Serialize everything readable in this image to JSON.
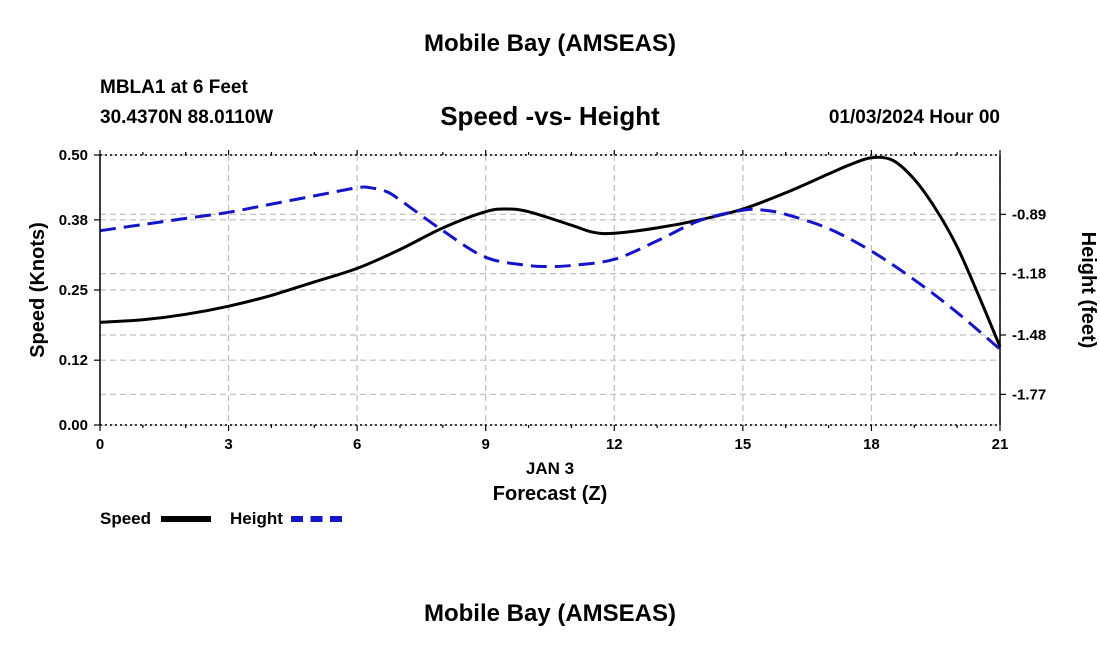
{
  "header": {
    "title_top": "Mobile Bay (AMSEAS)",
    "station": "MBLA1 at 6 Feet",
    "coords": "30.4370N  88.0110W",
    "subtitle": "Speed -vs- Height",
    "datetime": "01/03/2024 Hour 00",
    "title_bottom": "Mobile Bay (AMSEAS)"
  },
  "legend": {
    "speed_label": "Speed",
    "height_label": "Height"
  },
  "colors": {
    "speed": "#000000",
    "height": "#1414c8",
    "grid": "#bdbdbd"
  },
  "chart_data": {
    "type": "line",
    "xlabel": "Forecast (Z)",
    "xdate": "JAN 3",
    "ylabel": "Speed (Knots)",
    "y2label": "Height (feet)",
    "xlim": [
      0,
      21
    ],
    "ylim": [
      0,
      0.5
    ],
    "y2lim": [
      -1.92,
      -0.6
    ],
    "x_ticks": [
      "0",
      "3",
      "6",
      "9",
      "12",
      "15",
      "18",
      "21"
    ],
    "y_ticks": [
      "0.00",
      "0.12",
      "0.25",
      "0.38",
      "0.50"
    ],
    "y2_ticks": [
      "-0.89",
      "-1.18",
      "-1.48",
      "-1.77"
    ],
    "grid": true,
    "legend_position": "bottom-left",
    "series": [
      {
        "name": "Speed",
        "axis": "left",
        "style": "solid",
        "x": [
          0,
          1,
          2,
          3,
          4,
          5,
          6,
          7,
          8,
          9,
          9.5,
          10,
          11,
          11.5,
          12,
          13,
          14,
          15,
          16,
          17,
          17.5,
          18,
          18.5,
          19,
          19.5,
          20,
          20.5,
          21
        ],
        "y": [
          0.19,
          0.195,
          0.205,
          0.22,
          0.24,
          0.265,
          0.29,
          0.325,
          0.365,
          0.395,
          0.4,
          0.395,
          0.37,
          0.357,
          0.355,
          0.365,
          0.38,
          0.4,
          0.43,
          0.465,
          0.482,
          0.495,
          0.49,
          0.455,
          0.4,
          0.33,
          0.24,
          0.145
        ]
      },
      {
        "name": "Height",
        "axis": "right",
        "style": "dashed",
        "x": [
          0,
          1,
          2,
          3,
          4,
          5,
          6,
          6.3,
          6.7,
          7,
          8,
          9,
          10,
          10.5,
          11,
          12,
          13,
          14,
          15,
          15.5,
          16,
          17,
          18,
          19,
          20,
          21
        ],
        "y": [
          -0.97,
          -0.94,
          -0.91,
          -0.88,
          -0.84,
          -0.8,
          -0.76,
          -0.76,
          -0.78,
          -0.82,
          -0.97,
          -1.1,
          -1.14,
          -1.145,
          -1.14,
          -1.11,
          -1.02,
          -0.92,
          -0.87,
          -0.87,
          -0.89,
          -0.96,
          -1.07,
          -1.21,
          -1.37,
          -1.55
        ]
      }
    ]
  }
}
